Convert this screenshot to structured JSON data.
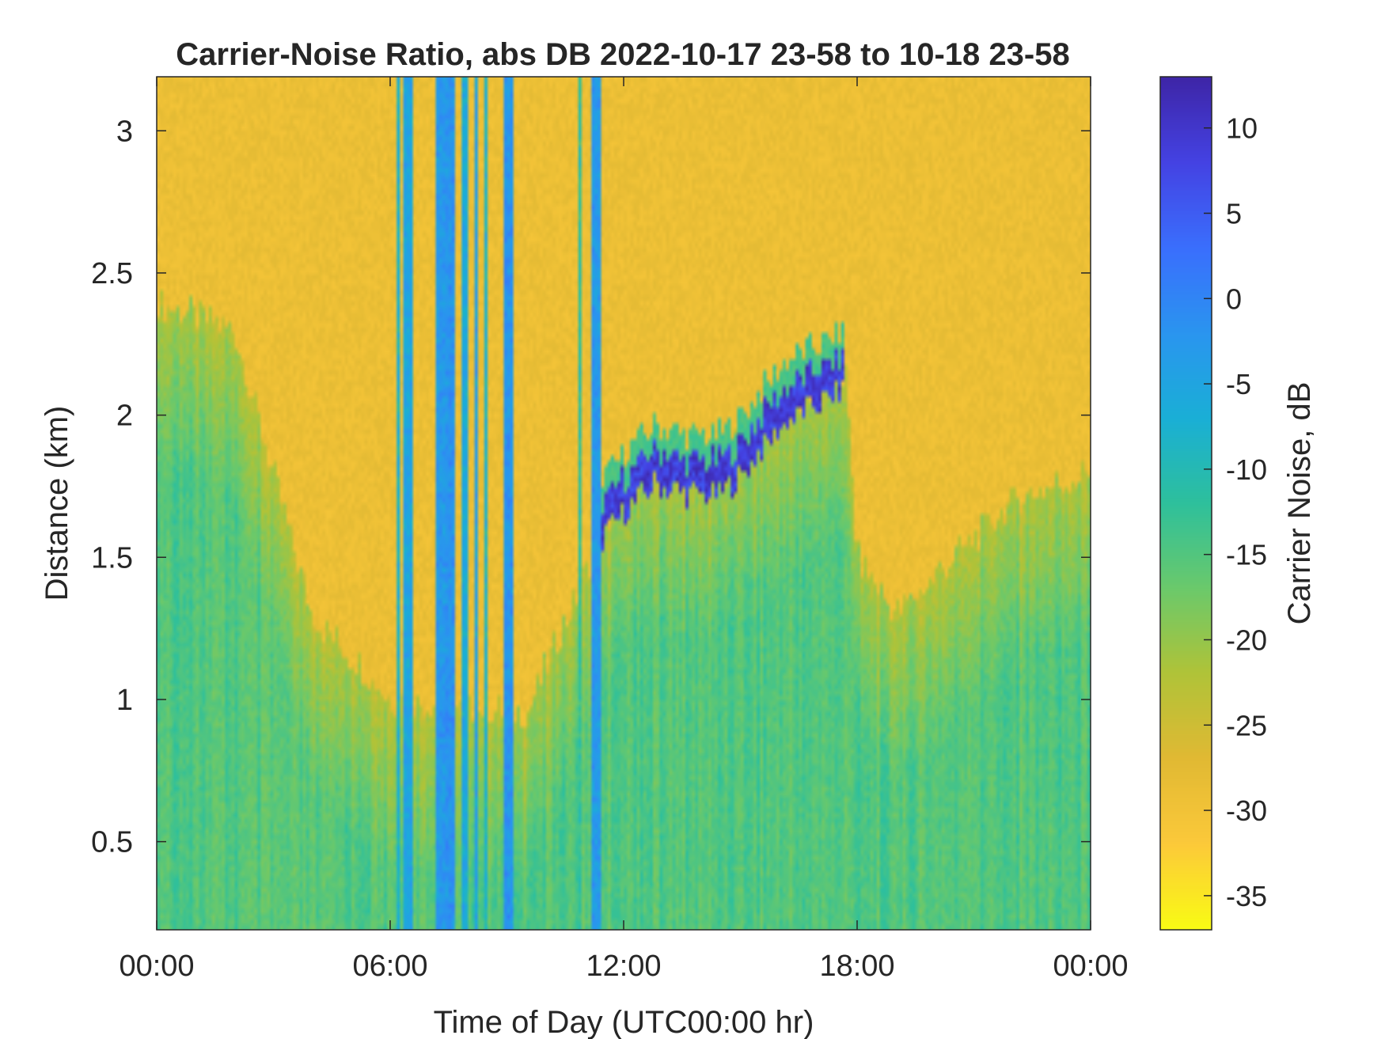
{
  "chart_data": {
    "type": "heatmap",
    "title": "Carrier-Noise Ratio, abs DB 2022-10-17 23-58 to 10-18 23-58",
    "xlabel": "Time of Day (UTC00:00 hr)",
    "ylabel": "Distance (km)",
    "colorbar_label": "Carrier Noise, dB",
    "x_unit": "hours",
    "xlim": [
      0,
      24
    ],
    "ylim": [
      0.19,
      3.19
    ],
    "clim": [
      -37,
      13
    ],
    "x_ticks": [
      0,
      6,
      12,
      18,
      24
    ],
    "x_tick_labels": [
      "00:00",
      "06:00",
      "12:00",
      "18:00",
      "00:00"
    ],
    "y_ticks": [
      0.5,
      1,
      1.5,
      2,
      2.5,
      3
    ],
    "y_tick_labels": [
      "0.5",
      "1",
      "1.5",
      "2",
      "2.5",
      "3"
    ],
    "colorbar_ticks": [
      10,
      5,
      0,
      -5,
      -10,
      -15,
      -20,
      -25,
      -30,
      -35
    ],
    "colorbar_tick_labels": [
      "10",
      "5",
      "0",
      "-5",
      "-10",
      "-15",
      "-20",
      "-25",
      "-30",
      "-35"
    ],
    "colormap": "parula",
    "colormap_stops": [
      "#3e26a8",
      "#4443e4",
      "#3a6ffd",
      "#2a95ef",
      "#1aafd6",
      "#2ec09c",
      "#6bc96b",
      "#b0c338",
      "#e1b933",
      "#fcc93a",
      "#f9fb15"
    ],
    "grid": false,
    "background_level_db": -29,
    "boundary_layer_top_km": [
      [
        0,
        2.4
      ],
      [
        2,
        2.3
      ],
      [
        4,
        1.3
      ],
      [
        6,
        1.0
      ],
      [
        9.5,
        0.95
      ],
      [
        11.5,
        1.6
      ],
      [
        12,
        1.75
      ],
      [
        13,
        1.85
      ],
      [
        14,
        1.8
      ],
      [
        15,
        1.9
      ],
      [
        16,
        2.0
      ],
      [
        17,
        2.1
      ],
      [
        17.7,
        2.15
      ],
      [
        18,
        1.5
      ],
      [
        19,
        1.3
      ],
      [
        20.5,
        1.5
      ],
      [
        22,
        1.7
      ],
      [
        24,
        1.8
      ]
    ],
    "cloud_base_km": [
      [
        11.4,
        1.62
      ],
      [
        12,
        1.72
      ],
      [
        12.8,
        1.82
      ],
      [
        13.6,
        1.78
      ],
      [
        14.4,
        1.78
      ],
      [
        15,
        1.84
      ],
      [
        15.6,
        1.95
      ],
      [
        16.2,
        2.04
      ],
      [
        17,
        2.1
      ],
      [
        17.7,
        2.15
      ]
    ],
    "vertical_streaks": [
      {
        "x": 6.2,
        "width": 0.12,
        "db": -8
      },
      {
        "x": 6.45,
        "width": 0.2,
        "db": -5
      },
      {
        "x": 7.3,
        "width": 0.2,
        "db": -3
      },
      {
        "x": 7.55,
        "width": 0.25,
        "db": -2
      },
      {
        "x": 7.9,
        "width": 0.15,
        "db": -6
      },
      {
        "x": 8.2,
        "width": 0.12,
        "db": -4
      },
      {
        "x": 8.45,
        "width": 0.1,
        "db": -8
      },
      {
        "x": 9.05,
        "width": 0.3,
        "db": -2
      },
      {
        "x": 11.3,
        "width": 0.25,
        "db": -3
      },
      {
        "x": 10.9,
        "width": 0.08,
        "db": -12
      }
    ]
  }
}
